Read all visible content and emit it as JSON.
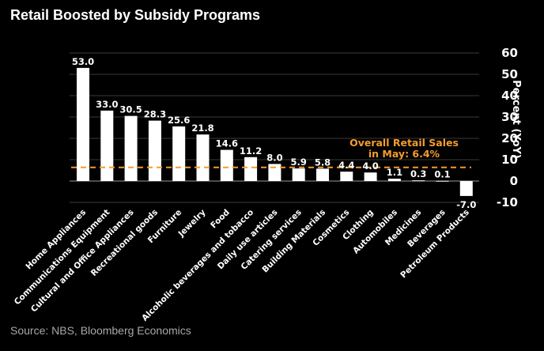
{
  "chart_data": {
    "type": "bar",
    "title": "Retail Boosted by Subsidy Programs",
    "source": "Source: NBS, Bloomberg Economics",
    "ylabel": "Percent (YoY)",
    "xlabel": "",
    "ylim": [
      -10,
      60
    ],
    "yticks": [
      "60",
      "50",
      "40",
      "30",
      "20",
      "10",
      "0",
      "-10"
    ],
    "ytick_values": [
      60,
      50,
      40,
      30,
      20,
      10,
      0,
      -10
    ],
    "grid": true,
    "bar_color": "#ffffff",
    "background": "#000000",
    "categories": [
      "Home Appliances",
      "Communications Equipment",
      "Cultural and Office Appliances",
      "Recreational goods",
      "Furniture",
      "Jewelry",
      "Food",
      "Alcoholic beverages and tobacco",
      "Daily use articles",
      "Catering services",
      "Building Materials",
      "Cosmetics",
      "Clothing",
      "Automobiles",
      "Medicines",
      "Beverages",
      "Petroleum Products"
    ],
    "values": [
      53.0,
      33.0,
      30.5,
      28.3,
      25.6,
      21.8,
      14.6,
      11.2,
      8.0,
      5.9,
      5.8,
      4.4,
      4.0,
      1.1,
      0.3,
      0.1,
      -7.0
    ],
    "value_labels": [
      "53.0",
      "33.0",
      "30.5",
      "28.3",
      "25.6",
      "21.8",
      "14.6",
      "11.2",
      "8.0",
      "5.9",
      "5.8",
      "4.4",
      "4.0",
      "1.1",
      "0.3",
      "0.1",
      "-7.0"
    ],
    "reference_line": {
      "value": 6.4,
      "label_line1": "Overall Retail Sales",
      "label_line2": "in May: 6.4%",
      "color": "#f39c2e"
    }
  }
}
